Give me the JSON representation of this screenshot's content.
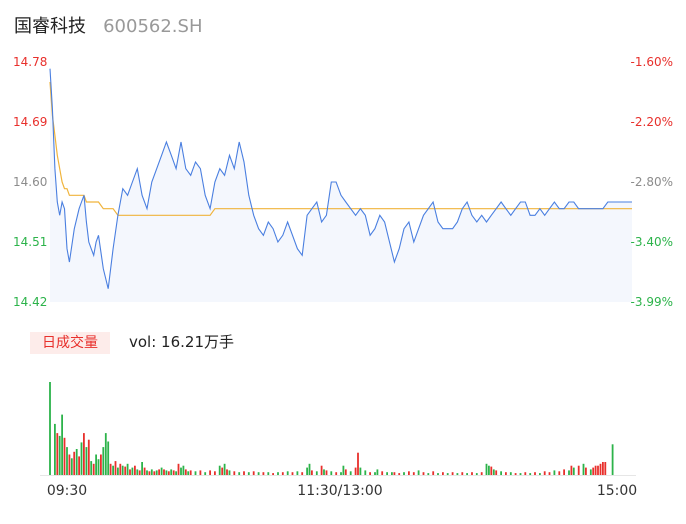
{
  "header": {
    "name": "国睿科技",
    "code": "600562.SH"
  },
  "volume_panel": {
    "badge": "日成交量",
    "label": "vol: 16.21万手"
  },
  "colors": {
    "up": "#e8302c",
    "down": "#2cb34a",
    "neutral": "#8c8c8c",
    "price_line": "#4a7fe0",
    "avg_line": "#f0b43c",
    "area": "#f4f7fd"
  },
  "chart_data": [
    {
      "type": "line",
      "title": "",
      "xlabel": "",
      "ylabel": "",
      "x_ticks": [
        "09:30",
        "11:30/13:00",
        "15:00"
      ],
      "y_ticks_left": [
        "14.78",
        "14.69",
        "14.60",
        "14.51",
        "14.42"
      ],
      "y_ticks_right": [
        "-1.60%",
        "-2.20%",
        "-2.80%",
        "-3.40%",
        "-3.99%"
      ],
      "ylim": [
        14.42,
        14.78
      ],
      "x_minutes": [
        0,
        1,
        2,
        3,
        4,
        5,
        6,
        7,
        8,
        10,
        12,
        13,
        14,
        15,
        16,
        17,
        18,
        19,
        20,
        22,
        24,
        26,
        28,
        30,
        32,
        34,
        36,
        38,
        40,
        42,
        44,
        46,
        48,
        50,
        52,
        54,
        56,
        58,
        60,
        62,
        64,
        66,
        68,
        70,
        72,
        74,
        76,
        78,
        80,
        82,
        84,
        86,
        88,
        90,
        92,
        94,
        96,
        98,
        100,
        102,
        104,
        106,
        108,
        110,
        112,
        114,
        116,
        118,
        120,
        122,
        124,
        126,
        128,
        130,
        132,
        134,
        136,
        138,
        140,
        142,
        144,
        146,
        148,
        150,
        152,
        154,
        156,
        158,
        160,
        162,
        164,
        166,
        168,
        170,
        172,
        174,
        176,
        178,
        180,
        182,
        184,
        186,
        188,
        190,
        192,
        194,
        196,
        198,
        200,
        202,
        204,
        206,
        208,
        210,
        212,
        214,
        216,
        218,
        220,
        222,
        224,
        226,
        228,
        230,
        232,
        234,
        236,
        238,
        240
      ],
      "series": [
        {
          "kind": "price",
          "values": [
            14.77,
            14.71,
            14.62,
            14.57,
            14.55,
            14.57,
            14.56,
            14.5,
            14.48,
            14.53,
            14.56,
            14.57,
            14.58,
            14.54,
            14.51,
            14.5,
            14.49,
            14.51,
            14.52,
            14.47,
            14.44,
            14.5,
            14.55,
            14.59,
            14.58,
            14.6,
            14.62,
            14.58,
            14.56,
            14.6,
            14.62,
            14.64,
            14.66,
            14.64,
            14.62,
            14.66,
            14.62,
            14.61,
            14.63,
            14.62,
            14.58,
            14.56,
            14.6,
            14.62,
            14.61,
            14.64,
            14.62,
            14.66,
            14.63,
            14.58,
            14.55,
            14.53,
            14.52,
            14.54,
            14.53,
            14.51,
            14.52,
            14.54,
            14.52,
            14.5,
            14.49,
            14.55,
            14.56,
            14.57,
            14.54,
            14.55,
            14.6,
            14.6,
            14.58,
            14.57,
            14.56,
            14.55,
            14.56,
            14.55,
            14.52,
            14.53,
            14.55,
            14.54,
            14.51,
            14.48,
            14.5,
            14.53,
            14.54,
            14.51,
            14.53,
            14.55,
            14.56,
            14.57,
            14.54,
            14.53,
            14.53,
            14.53,
            14.54,
            14.56,
            14.57,
            14.55,
            14.54,
            14.55,
            14.54,
            14.55,
            14.56,
            14.57,
            14.56,
            14.55,
            14.56,
            14.57,
            14.57,
            14.55,
            14.55,
            14.56,
            14.55,
            14.56,
            14.57,
            14.56,
            14.56,
            14.57,
            14.57,
            14.56,
            14.56,
            14.56,
            14.56,
            14.56,
            14.56,
            14.57,
            14.57,
            14.57,
            14.57,
            14.57,
            14.57
          ]
        },
        {
          "kind": "average",
          "values": [
            14.75,
            14.7,
            14.67,
            14.64,
            14.62,
            14.6,
            14.59,
            14.59,
            14.58,
            14.58,
            14.58,
            14.58,
            14.58,
            14.57,
            14.57,
            14.57,
            14.57,
            14.57,
            14.57,
            14.56,
            14.56,
            14.56,
            14.55,
            14.55,
            14.55,
            14.55,
            14.55,
            14.55,
            14.55,
            14.55,
            14.55,
            14.55,
            14.55,
            14.55,
            14.55,
            14.55,
            14.55,
            14.55,
            14.55,
            14.55,
            14.55,
            14.55,
            14.56,
            14.56,
            14.56,
            14.56,
            14.56,
            14.56,
            14.56,
            14.56,
            14.56,
            14.56,
            14.56,
            14.56,
            14.56,
            14.56,
            14.56,
            14.56,
            14.56,
            14.56,
            14.56,
            14.56,
            14.56,
            14.56,
            14.56,
            14.56,
            14.56,
            14.56,
            14.56,
            14.56,
            14.56,
            14.56,
            14.56,
            14.56,
            14.56,
            14.56,
            14.56,
            14.56,
            14.56,
            14.56,
            14.56,
            14.56,
            14.56,
            14.56,
            14.56,
            14.56,
            14.56,
            14.56,
            14.56,
            14.56,
            14.56,
            14.56,
            14.56,
            14.56,
            14.56,
            14.56,
            14.56,
            14.56,
            14.56,
            14.56,
            14.56,
            14.56,
            14.56,
            14.56,
            14.56,
            14.56,
            14.56,
            14.56,
            14.56,
            14.56,
            14.56,
            14.56,
            14.56,
            14.56,
            14.56,
            14.56,
            14.56,
            14.56,
            14.56,
            14.56,
            14.56,
            14.56,
            14.56,
            14.56,
            14.56,
            14.56,
            14.56,
            14.56,
            14.56
          ]
        }
      ]
    },
    {
      "type": "bar",
      "title": "",
      "ylabel": "",
      "xlim": [
        0,
        240
      ],
      "bars": [
        [
          0,
          1.0,
          "d"
        ],
        [
          2,
          0.55,
          "d"
        ],
        [
          3,
          0.45,
          "u"
        ],
        [
          4,
          0.42,
          "d"
        ],
        [
          5,
          0.65,
          "d"
        ],
        [
          6,
          0.4,
          "u"
        ],
        [
          7,
          0.3,
          "d"
        ],
        [
          8,
          0.22,
          "u"
        ],
        [
          9,
          0.18,
          "d"
        ],
        [
          10,
          0.25,
          "u"
        ],
        [
          11,
          0.28,
          "d"
        ],
        [
          12,
          0.2,
          "u"
        ],
        [
          13,
          0.35,
          "d"
        ],
        [
          14,
          0.45,
          "u"
        ],
        [
          15,
          0.3,
          "d"
        ],
        [
          16,
          0.38,
          "u"
        ],
        [
          17,
          0.15,
          "d"
        ],
        [
          18,
          0.12,
          "u"
        ],
        [
          19,
          0.22,
          "d"
        ],
        [
          20,
          0.17,
          "d"
        ],
        [
          21,
          0.22,
          "u"
        ],
        [
          22,
          0.3,
          "d"
        ],
        [
          23,
          0.45,
          "d"
        ],
        [
          24,
          0.36,
          "d"
        ],
        [
          25,
          0.12,
          "u"
        ],
        [
          26,
          0.1,
          "d"
        ],
        [
          27,
          0.15,
          "u"
        ],
        [
          28,
          0.08,
          "d"
        ],
        [
          29,
          0.12,
          "u"
        ],
        [
          30,
          0.1,
          "d"
        ],
        [
          31,
          0.09,
          "u"
        ],
        [
          32,
          0.12,
          "d"
        ],
        [
          33,
          0.06,
          "u"
        ],
        [
          34,
          0.08,
          "d"
        ],
        [
          35,
          0.1,
          "u"
        ],
        [
          36,
          0.06,
          "d"
        ],
        [
          37,
          0.05,
          "u"
        ],
        [
          38,
          0.14,
          "d"
        ],
        [
          39,
          0.08,
          "u"
        ],
        [
          40,
          0.05,
          "d"
        ],
        [
          41,
          0.04,
          "u"
        ],
        [
          42,
          0.06,
          "d"
        ],
        [
          43,
          0.04,
          "u"
        ],
        [
          44,
          0.05,
          "d"
        ],
        [
          45,
          0.06,
          "u"
        ],
        [
          46,
          0.08,
          "d"
        ],
        [
          47,
          0.06,
          "u"
        ],
        [
          48,
          0.05,
          "d"
        ],
        [
          49,
          0.04,
          "u"
        ],
        [
          50,
          0.06,
          "d"
        ],
        [
          51,
          0.05,
          "u"
        ],
        [
          52,
          0.04,
          "d"
        ],
        [
          53,
          0.12,
          "u"
        ],
        [
          54,
          0.08,
          "d"
        ],
        [
          55,
          0.1,
          "d"
        ],
        [
          56,
          0.06,
          "u"
        ],
        [
          57,
          0.04,
          "d"
        ],
        [
          58,
          0.05,
          "u"
        ],
        [
          60,
          0.04,
          "d"
        ],
        [
          62,
          0.05,
          "u"
        ],
        [
          64,
          0.03,
          "d"
        ],
        [
          66,
          0.05,
          "u"
        ],
        [
          68,
          0.04,
          "u"
        ],
        [
          70,
          0.1,
          "d"
        ],
        [
          71,
          0.08,
          "u"
        ],
        [
          72,
          0.12,
          "d"
        ],
        [
          73,
          0.06,
          "u"
        ],
        [
          74,
          0.05,
          "d"
        ],
        [
          76,
          0.04,
          "u"
        ],
        [
          78,
          0.03,
          "d"
        ],
        [
          80,
          0.04,
          "u"
        ],
        [
          82,
          0.03,
          "d"
        ],
        [
          84,
          0.04,
          "u"
        ],
        [
          86,
          0.03,
          "d"
        ],
        [
          88,
          0.03,
          "u"
        ],
        [
          90,
          0.03,
          "d"
        ],
        [
          92,
          0.02,
          "u"
        ],
        [
          94,
          0.03,
          "d"
        ],
        [
          96,
          0.03,
          "u"
        ],
        [
          98,
          0.04,
          "d"
        ],
        [
          100,
          0.03,
          "u"
        ],
        [
          102,
          0.04,
          "d"
        ],
        [
          104,
          0.03,
          "u"
        ],
        [
          106,
          0.08,
          "d"
        ],
        [
          107,
          0.12,
          "d"
        ],
        [
          108,
          0.05,
          "u"
        ],
        [
          110,
          0.04,
          "d"
        ],
        [
          112,
          0.1,
          "u"
        ],
        [
          113,
          0.06,
          "d"
        ],
        [
          114,
          0.05,
          "u"
        ],
        [
          116,
          0.04,
          "d"
        ],
        [
          118,
          0.03,
          "u"
        ],
        [
          120,
          0.03,
          "d"
        ],
        [
          121,
          0.1,
          "d"
        ],
        [
          122,
          0.06,
          "u"
        ],
        [
          124,
          0.04,
          "d"
        ],
        [
          126,
          0.08,
          "u"
        ],
        [
          127,
          0.24,
          "u"
        ],
        [
          128,
          0.08,
          "d"
        ],
        [
          130,
          0.05,
          "d"
        ],
        [
          132,
          0.03,
          "u"
        ],
        [
          134,
          0.03,
          "d"
        ],
        [
          135,
          0.06,
          "d"
        ],
        [
          137,
          0.04,
          "u"
        ],
        [
          139,
          0.03,
          "d"
        ],
        [
          141,
          0.03,
          "d"
        ],
        [
          142,
          0.03,
          "u"
        ],
        [
          144,
          0.02,
          "u"
        ],
        [
          146,
          0.03,
          "d"
        ],
        [
          148,
          0.04,
          "u"
        ],
        [
          150,
          0.03,
          "u"
        ],
        [
          152,
          0.05,
          "d"
        ],
        [
          154,
          0.03,
          "u"
        ],
        [
          156,
          0.02,
          "d"
        ],
        [
          158,
          0.04,
          "u"
        ],
        [
          160,
          0.02,
          "d"
        ],
        [
          162,
          0.03,
          "u"
        ],
        [
          164,
          0.02,
          "d"
        ],
        [
          166,
          0.03,
          "u"
        ],
        [
          168,
          0.02,
          "d"
        ],
        [
          170,
          0.03,
          "u"
        ],
        [
          172,
          0.02,
          "d"
        ],
        [
          174,
          0.03,
          "u"
        ],
        [
          176,
          0.02,
          "d"
        ],
        [
          178,
          0.03,
          "u"
        ],
        [
          180,
          0.12,
          "d"
        ],
        [
          181,
          0.1,
          "d"
        ],
        [
          182,
          0.09,
          "u"
        ],
        [
          183,
          0.06,
          "d"
        ],
        [
          184,
          0.05,
          "u"
        ],
        [
          186,
          0.04,
          "d"
        ],
        [
          188,
          0.03,
          "u"
        ],
        [
          190,
          0.03,
          "d"
        ],
        [
          192,
          0.02,
          "u"
        ],
        [
          194,
          0.02,
          "d"
        ],
        [
          196,
          0.03,
          "u"
        ],
        [
          198,
          0.02,
          "d"
        ],
        [
          200,
          0.03,
          "u"
        ],
        [
          202,
          0.02,
          "d"
        ],
        [
          204,
          0.04,
          "u"
        ],
        [
          206,
          0.03,
          "u"
        ],
        [
          208,
          0.05,
          "d"
        ],
        [
          210,
          0.04,
          "u"
        ],
        [
          212,
          0.06,
          "u"
        ],
        [
          214,
          0.05,
          "d"
        ],
        [
          215,
          0.1,
          "u"
        ],
        [
          216,
          0.08,
          "d"
        ],
        [
          218,
          0.1,
          "u"
        ],
        [
          220,
          0.12,
          "d"
        ],
        [
          221,
          0.08,
          "u"
        ],
        [
          223,
          0.06,
          "d"
        ],
        [
          224,
          0.08,
          "u"
        ],
        [
          225,
          0.1,
          "u"
        ],
        [
          226,
          0.1,
          "u"
        ],
        [
          227,
          0.12,
          "u"
        ],
        [
          228,
          0.14,
          "u"
        ],
        [
          229,
          0.14,
          "u"
        ],
        [
          232,
          0.33,
          "d"
        ]
      ]
    }
  ]
}
